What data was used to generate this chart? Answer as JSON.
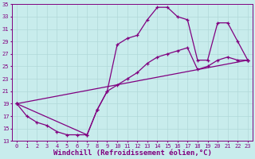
{
  "xlabel": "Windchill (Refroidissement éolien,°C)",
  "xlim": [
    -0.5,
    23.5
  ],
  "ylim": [
    13,
    35
  ],
  "xticks": [
    0,
    1,
    2,
    3,
    4,
    5,
    6,
    7,
    8,
    9,
    10,
    11,
    12,
    13,
    14,
    15,
    16,
    17,
    18,
    19,
    20,
    21,
    22,
    23
  ],
  "yticks": [
    13,
    15,
    17,
    19,
    21,
    23,
    25,
    27,
    29,
    31,
    33,
    35
  ],
  "background_color": "#c8ecec",
  "grid_color": "#b0d8d8",
  "line_color": "#800080",
  "curve1_x": [
    0,
    1,
    2,
    3,
    4,
    5,
    6,
    7,
    8,
    9,
    10,
    11,
    12,
    13,
    14,
    15,
    16,
    17,
    18,
    19,
    20,
    21,
    22,
    23
  ],
  "curve1_y": [
    19,
    17,
    16,
    15.5,
    14.5,
    14,
    14,
    14,
    18,
    21,
    28.5,
    29.5,
    30,
    32.5,
    34.5,
    34.5,
    33,
    32.5,
    26,
    26,
    32,
    32,
    29,
    26
  ],
  "curve2_x": [
    0,
    7,
    8,
    9,
    10,
    11,
    12,
    13,
    14,
    15,
    16,
    17,
    18,
    19,
    20,
    21,
    22,
    23
  ],
  "curve2_y": [
    19,
    14,
    18,
    21,
    22,
    23,
    24,
    25.5,
    26.5,
    27,
    27.5,
    28,
    24.5,
    25,
    26,
    26.5,
    26,
    26
  ],
  "line3_x": [
    0,
    23
  ],
  "line3_y": [
    19,
    26
  ],
  "font_family": "monospace",
  "tick_fontsize": 5.0,
  "xlabel_fontsize": 6.5
}
